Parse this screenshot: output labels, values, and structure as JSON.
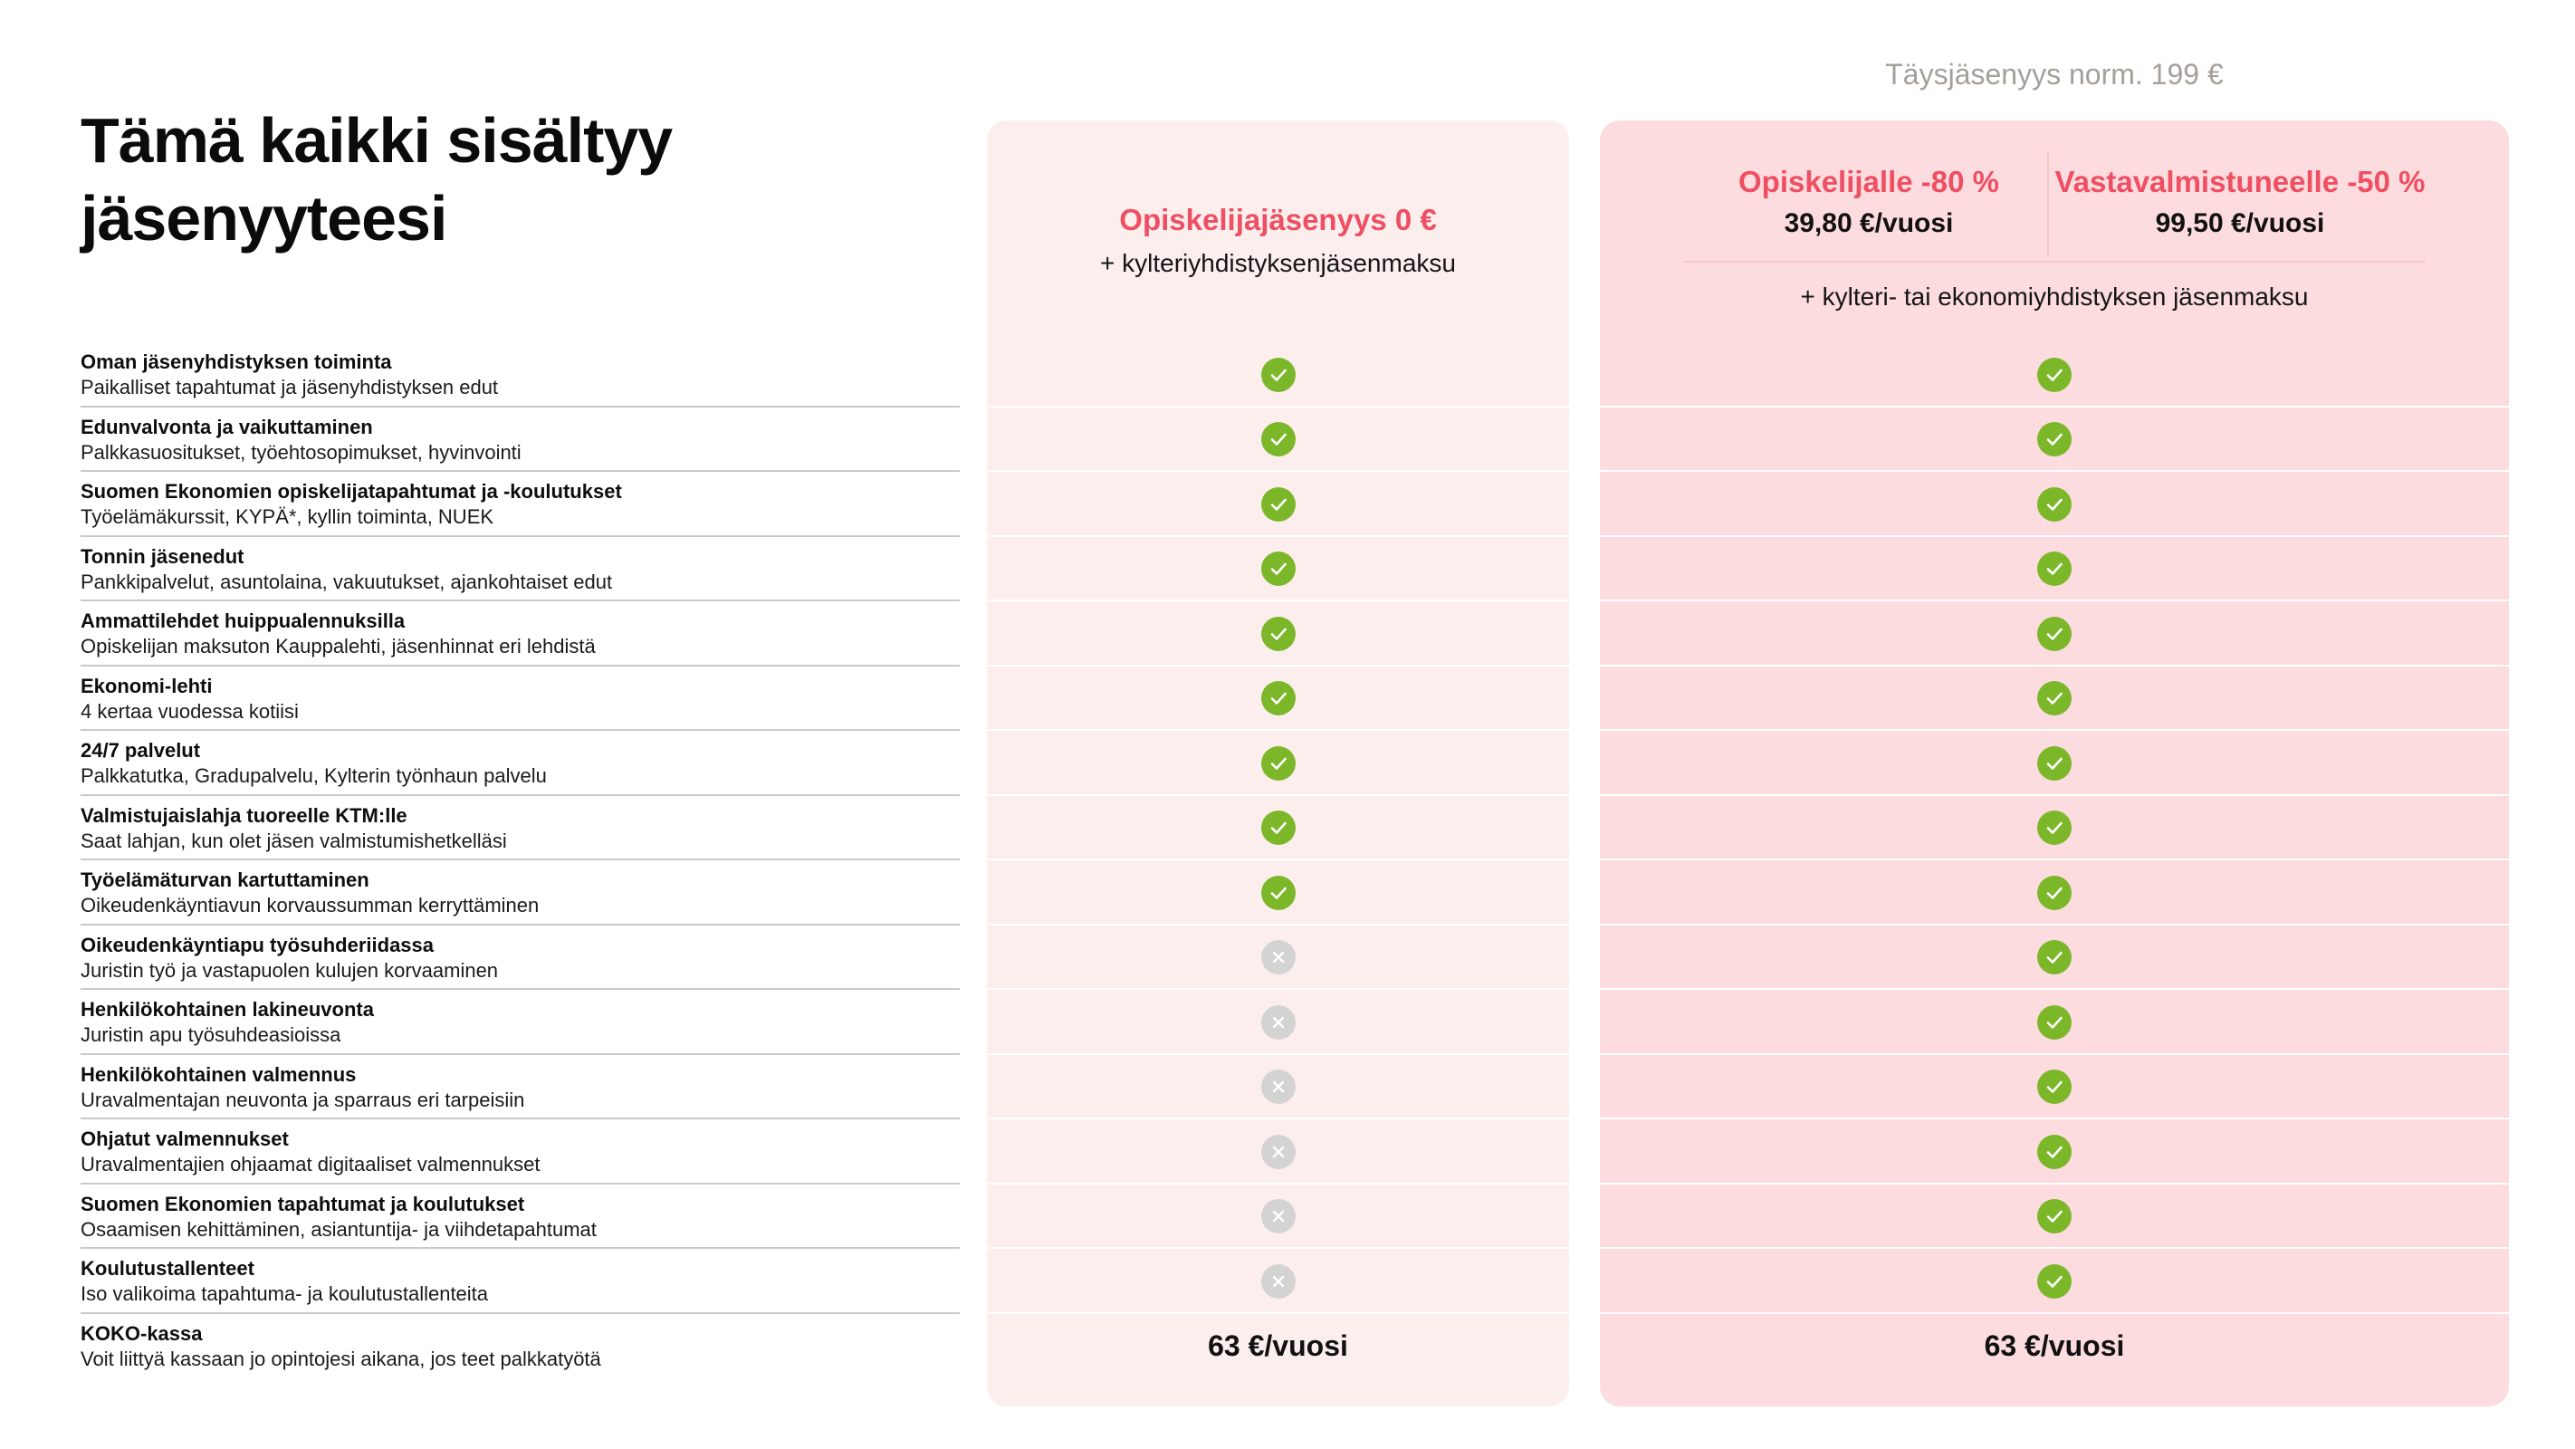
{
  "title": "Tämä kaikki sisältyy jäsenyyteesi",
  "full_note": "Täysjäsenyys norm. 199 €",
  "student_plan": {
    "name": "Opiskelijajäsenyys 0 €",
    "extra": "+ kylteriyhdistyksenjäsenmaksu"
  },
  "full_plan": {
    "option1_name": "Opiskelijalle -80 %",
    "option1_price": "39,80 €/vuosi",
    "option2_name": "Vastavalmistuneelle -50 %",
    "option2_price": "99,50 €/vuosi",
    "extra": "+ kylteri- tai ekonomiyhdistyksen jäsenmaksu"
  },
  "colors": {
    "accent": "#ee4f62",
    "check": "#7cb72a",
    "cross": "#d3d3d3",
    "student_panel": "#fdeeee",
    "full_panel": "#fcdcdf"
  },
  "rows": [
    {
      "title": "Oman jäsenyhdistyksen toiminta",
      "desc": "Paikalliset tapahtumat ja jäsenyhdistyksen edut",
      "student": "check",
      "full": "check"
    },
    {
      "title": "Edunvalvonta ja vaikuttaminen",
      "desc": "Palkkasuositukset, työehtosopimukset, hyvinvointi",
      "student": "check",
      "full": "check"
    },
    {
      "title": "Suomen Ekonomien opiskelijatapahtumat ja -koulutukset",
      "desc": "Työelämäkurssit, KYPÄ*, kyllin toiminta, NUEK",
      "student": "check",
      "full": "check"
    },
    {
      "title": "Tonnin jäsenedut",
      "desc": "Pankkipalvelut, asuntolaina, vakuutukset, ajankohtaiset edut",
      "student": "check",
      "full": "check"
    },
    {
      "title": "Ammattilehdet huippualennuksilla",
      "desc": "Opiskelijan maksuton Kauppalehti, jäsenhinnat eri lehdistä",
      "student": "check",
      "full": "check"
    },
    {
      "title": "Ekonomi-lehti",
      "desc": "4 kertaa vuodessa kotiisi",
      "student": "check",
      "full": "check"
    },
    {
      "title": "24/7 palvelut",
      "desc": "Palkkatutka, Gradupalvelu, Kylterin työnhaun palvelu",
      "student": "check",
      "full": "check"
    },
    {
      "title": "Valmistujaislahja tuoreelle KTM:lle",
      "desc": "Saat lahjan, kun olet jäsen valmistumishetkelläsi",
      "student": "check",
      "full": "check"
    },
    {
      "title": "Työelämäturvan kartuttaminen",
      "desc": "Oikeudenkäyntiavun korvaussumman kerryttäminen",
      "student": "check",
      "full": "check"
    },
    {
      "title": "Oikeudenkäyntiapu työsuhderiidassa",
      "desc": "Juristin työ ja vastapuolen kulujen korvaaminen",
      "student": "cross",
      "full": "check"
    },
    {
      "title": "Henkilökohtainen lakineuvonta",
      "desc": "Juristin apu työsuhdeasioissa",
      "student": "cross",
      "full": "check"
    },
    {
      "title": "Henkilökohtainen valmennus",
      "desc": "Uravalmentajan neuvonta ja sparraus eri tarpeisiin",
      "student": "cross",
      "full": "check"
    },
    {
      "title": "Ohjatut valmennukset",
      "desc": "Uravalmentajien ohjaamat digitaaliset valmennukset",
      "student": "cross",
      "full": "check"
    },
    {
      "title": "Suomen Ekonomien tapahtumat ja koulutukset",
      "desc": "Osaamisen kehittäminen, asiantuntija- ja viihdetapahtumat",
      "student": "cross",
      "full": "check"
    },
    {
      "title": "Koulutustallenteet",
      "desc": "Iso valikoima tapahtuma- ja koulutustallenteita",
      "student": "cross",
      "full": "check"
    },
    {
      "title": "KOKO-kassa",
      "desc": "Voit liittyä kassaan jo opintojesi aikana, jos teet palkkatyötä",
      "student": "63 €/vuosi",
      "full": "63 €/vuosi"
    }
  ]
}
